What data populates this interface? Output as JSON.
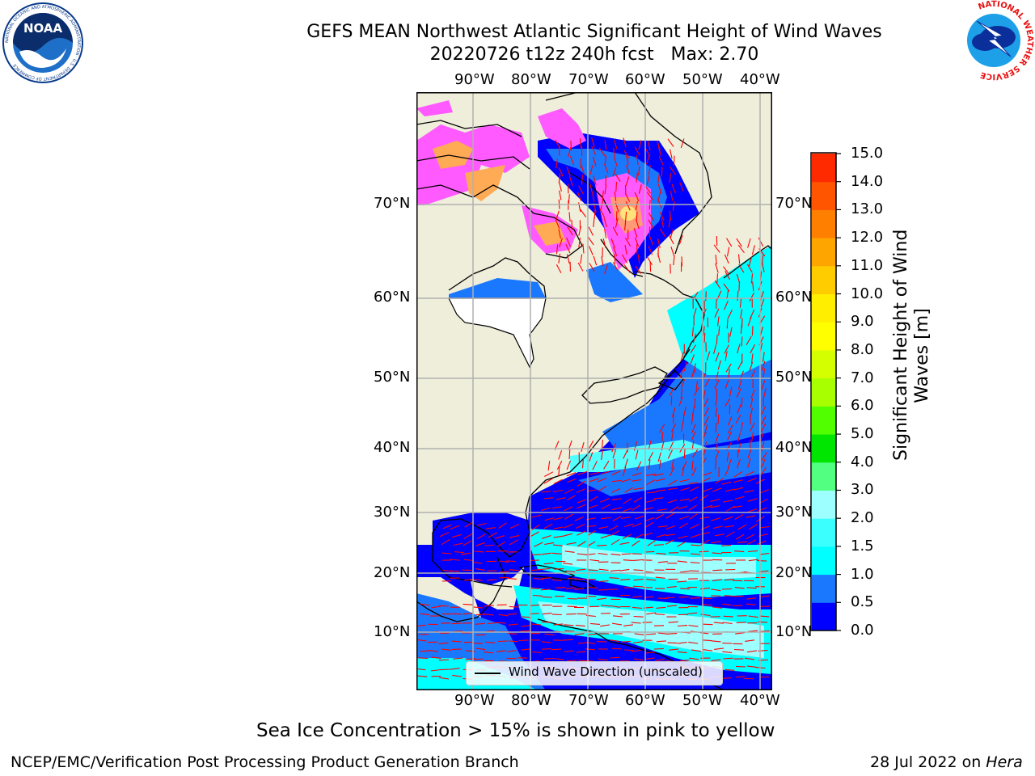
{
  "header": {
    "title_line1": "GEFS MEAN Northwest Atlantic Significant Height of Wind Waves",
    "title_line2": "20220726 t12z 240h fcst   Max: 2.70"
  },
  "logos": {
    "noaa_text": "NOAA",
    "noaa_ring_text": "NATIONAL OCEANIC AND ATMOSPHERIC ADMINISTRATION · U.S. DEPARTMENT OF COMMERCE",
    "nws_ring_text": "NATIONAL WEATHER SERVICE"
  },
  "map": {
    "lon_labels": [
      "90°W",
      "80°W",
      "70°W",
      "60°W",
      "50°W",
      "40°W"
    ],
    "lat_labels": [
      "70°N",
      "60°N",
      "50°N",
      "40°N",
      "30°N",
      "20°N",
      "10°N"
    ],
    "legend_label": "Wind Wave Direction (unscaled)",
    "colors": {
      "land": "#efeedb",
      "ocean_low": "#0000ff",
      "ocean_mid": "#1a78ff",
      "ocean_high": "#00ffff",
      "ocean_peak": "#52ffff",
      "ice": "#ff5aff",
      "arrows": "#ff0000"
    }
  },
  "colorbar": {
    "title": "Significant Height of Wind\nWaves [m]",
    "ticks": [
      "15.0",
      "14.0",
      "13.0",
      "12.0",
      "11.0",
      "10.0",
      "9.0",
      "8.0",
      "7.0",
      "6.0",
      "5.0",
      "4.0",
      "3.0",
      "2.0",
      "1.5",
      "1.0",
      "0.5",
      "0.0"
    ],
    "levels": [
      0.0,
      0.5,
      1.0,
      1.5,
      2.0,
      3.0,
      4.0,
      5.0,
      6.0,
      7.0,
      8.0,
      9.0,
      10.0,
      11.0,
      12.0,
      13.0,
      14.0,
      15.0
    ],
    "colors": [
      "#0000ff",
      "#1a78ff",
      "#00ffff",
      "#3bffff",
      "#9dffff",
      "#52ff80",
      "#00e600",
      "#52ff00",
      "#a8ff00",
      "#d4ff00",
      "#ffff00",
      "#ffee00",
      "#ffcc00",
      "#ffa500",
      "#ff8000",
      "#ff5500",
      "#ff2a00"
    ]
  },
  "caption": "Sea Ice Concentration > 15% is shown in pink to yellow",
  "footer": {
    "left": "NCEP/EMC/Verification Post Processing Product Generation Branch",
    "right_prefix": "28 Jul 2022 on ",
    "right_machine": "Hera"
  }
}
